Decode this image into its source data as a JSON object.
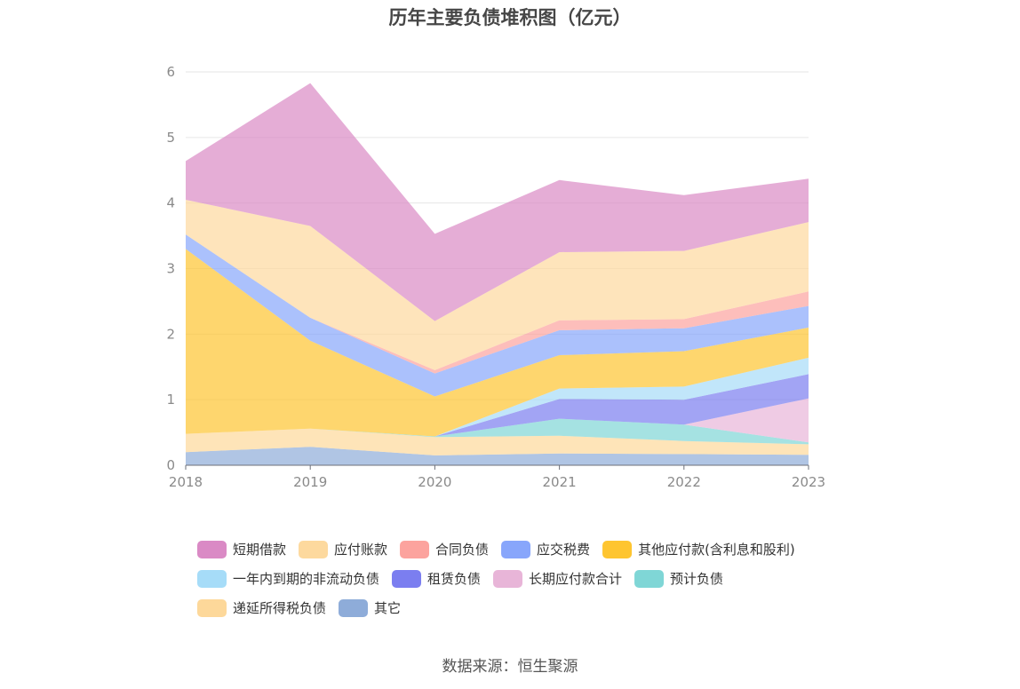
{
  "chart_data": {
    "type": "area",
    "stacked": true,
    "title": "历年主要负债堆积图（亿元）",
    "x": [
      "2018",
      "2019",
      "2020",
      "2021",
      "2022",
      "2023"
    ],
    "ylim": [
      0,
      6
    ],
    "yticks": [
      "0",
      "1",
      "2",
      "3",
      "4",
      "5",
      "6"
    ],
    "grid": true,
    "legend_position": "bottom",
    "series": [
      {
        "name": "其它",
        "color": "#8eacd9",
        "values": [
          0.2,
          0.28,
          0.15,
          0.18,
          0.17,
          0.16
        ]
      },
      {
        "name": "递延所得税负债",
        "color": "#fdd89a",
        "values": [
          0.28,
          0.28,
          0.28,
          0.27,
          0.2,
          0.16
        ]
      },
      {
        "name": "预计负债",
        "color": "#7fd6d6",
        "values": [
          0,
          0,
          0.01,
          0.26,
          0.25,
          0.03
        ]
      },
      {
        "name": "长期应付款合计",
        "color": "#e8b5d8",
        "values": [
          0,
          0,
          0,
          0,
          0,
          0.67
        ]
      },
      {
        "name": "租赁负债",
        "color": "#7b7ef0",
        "values": [
          0,
          0,
          0,
          0.3,
          0.38,
          0.37
        ]
      },
      {
        "name": "一年内到期的非流动负债",
        "color": "#a6dcf8",
        "values": [
          0,
          0,
          0,
          0.16,
          0.2,
          0.25
        ]
      },
      {
        "name": "其他应付款(含利息和股利)",
        "color": "#fec530",
        "values": [
          2.82,
          1.34,
          0.61,
          0.51,
          0.54,
          0.46
        ]
      },
      {
        "name": "应交税费",
        "color": "#88a6fb",
        "values": [
          0.22,
          0.35,
          0.35,
          0.38,
          0.35,
          0.33
        ]
      },
      {
        "name": "合同负债",
        "color": "#fca39e",
        "values": [
          0,
          0,
          0.05,
          0.15,
          0.14,
          0.22
        ]
      },
      {
        "name": "应付账款",
        "color": "#fdd99e",
        "values": [
          0.53,
          1.4,
          0.75,
          1.04,
          1.04,
          1.06
        ]
      },
      {
        "name": "短期借款",
        "color": "#da8ac5",
        "values": [
          0.59,
          2.18,
          1.33,
          1.1,
          0.85,
          0.66
        ]
      }
    ],
    "legend_order": [
      "短期借款",
      "应付账款",
      "合同负债",
      "应交税费",
      "其他应付款(含利息和股利)",
      "一年内到期的非流动负债",
      "租赁负债",
      "长期应付款合计",
      "预计负债",
      "递延所得税负债",
      "其它"
    ]
  },
  "source_text": "数据来源：恒生聚源"
}
